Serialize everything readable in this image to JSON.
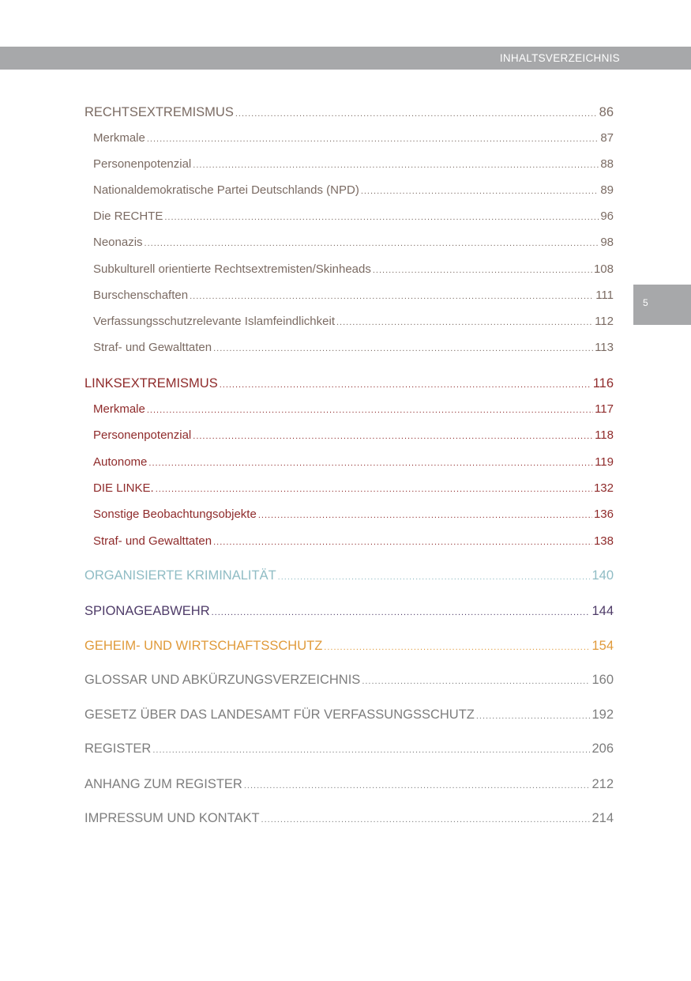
{
  "header": {
    "title": "INHALTSVERZEICHNIS",
    "page_number": "5"
  },
  "colors": {
    "rechts": "#7b6b63",
    "links": "#8f2b2b",
    "organisierte": "#8fbcc4",
    "spionage": "#4e3b68",
    "geheim": "#e09a3a",
    "other": "#7d7d7d",
    "bar": "#a7a8aa"
  },
  "toc": [
    {
      "label": "RECHTSEXTREMISMUS",
      "page": "86",
      "level": 1,
      "color": "rechts"
    },
    {
      "label": "Merkmale",
      "page": "87",
      "level": 2,
      "color": "rechts"
    },
    {
      "label": "Personenpotenzial",
      "page": "88",
      "level": 2,
      "color": "rechts"
    },
    {
      "label": "Nationaldemokratische Partei Deutschlands (NPD)",
      "page": "89",
      "level": 2,
      "color": "rechts"
    },
    {
      "label": "Die RECHTE",
      "page": "96",
      "level": 2,
      "color": "rechts"
    },
    {
      "label": "Neonazis",
      "page": "98",
      "level": 2,
      "color": "rechts"
    },
    {
      "label": "Subkulturell orientierte Rechtsextremisten/Skinheads",
      "page": "108",
      "level": 2,
      "color": "rechts"
    },
    {
      "label": "Burschenschaften",
      "page": "111",
      "level": 2,
      "color": "rechts"
    },
    {
      "label": "Verfassungsschutzrelevante Islamfeindlichkeit",
      "page": "112",
      "level": 2,
      "color": "rechts"
    },
    {
      "label": "Straf- und Gewalttaten",
      "page": "113",
      "level": 2,
      "color": "rechts"
    },
    {
      "label": "LINKSEXTREMISMUS",
      "page": "116",
      "level": 1,
      "color": "links"
    },
    {
      "label": "Merkmale",
      "page": "117",
      "level": 2,
      "color": "links"
    },
    {
      "label": "Personenpotenzial",
      "page": "118",
      "level": 2,
      "color": "links"
    },
    {
      "label": "Autonome",
      "page": "119",
      "level": 2,
      "color": "links"
    },
    {
      "label": "DIE LINKE.",
      "page": "132",
      "level": 2,
      "color": "links"
    },
    {
      "label": "Sonstige Beobachtungsobjekte",
      "page": "136",
      "level": 2,
      "color": "links"
    },
    {
      "label": "Straf- und Gewalttaten",
      "page": "138",
      "level": 2,
      "color": "links"
    },
    {
      "label": "ORGANISIERTE KRIMINALITÄT",
      "page": "140",
      "level": 1,
      "color": "ok"
    },
    {
      "label": "SPIONAGEABWEHR",
      "page": "144",
      "level": 1,
      "color": "spio"
    },
    {
      "label": "GEHEIM- UND WIRTSCHAFTSSCHUTZ",
      "page": "154",
      "level": 1,
      "color": "geheim"
    },
    {
      "label": "GLOSSAR UND ABKÜRZUNGSVERZEICHNIS",
      "page": "160",
      "level": 1,
      "color": "grey"
    },
    {
      "label": "GESETZ ÜBER DAS LANDESAMT FÜR VERFASSUNGSSCHUTZ",
      "page": "192",
      "level": 1,
      "color": "grey"
    },
    {
      "label": "REGISTER",
      "page": "206",
      "level": 1,
      "color": "grey"
    },
    {
      "label": "ANHANG ZUM REGISTER",
      "page": "212",
      "level": 1,
      "color": "grey"
    },
    {
      "label": "IMPRESSUM UND KONTAKT",
      "page": "214",
      "level": 1,
      "color": "grey"
    }
  ]
}
